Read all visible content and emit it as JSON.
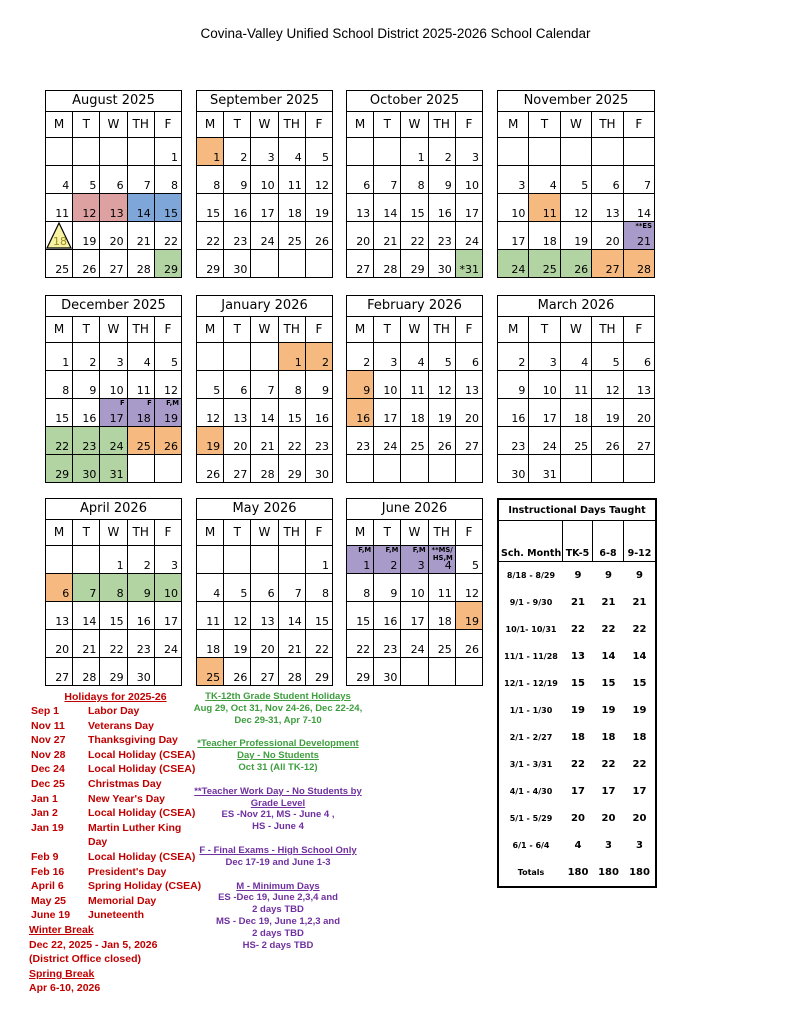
{
  "title": "Covina-Valley Unified School District  2025-2026 School Calendar",
  "day_headers": [
    "M",
    "T",
    "W",
    "TH",
    "F"
  ],
  "colors": {
    "pink": "#dda1a1",
    "blue": "#7ea6d8",
    "green": "#b2d3a2",
    "orange": "#f6b97f",
    "purple": "#a89bc9",
    "yellow": "#f7f3a3",
    "red_text": "#c00000",
    "green_text": "#3e9e3e",
    "purple_text": "#7030a0"
  },
  "months": [
    {
      "name": "August 2025",
      "weeks": [
        [
          {},
          {},
          {},
          {},
          {
            "d": "1"
          }
        ],
        [
          {
            "d": "4"
          },
          {
            "d": "5"
          },
          {
            "d": "6"
          },
          {
            "d": "7"
          },
          {
            "d": "8"
          }
        ],
        [
          {
            "d": "11"
          },
          {
            "d": "12",
            "hl": "pink"
          },
          {
            "d": "13",
            "hl": "pink"
          },
          {
            "d": "14",
            "hl": "blue"
          },
          {
            "d": "15",
            "hl": "blue"
          }
        ],
        [
          {
            "d": "18",
            "hl": "triangle"
          },
          {
            "d": "19"
          },
          {
            "d": "20"
          },
          {
            "d": "21"
          },
          {
            "d": "22"
          }
        ],
        [
          {
            "d": "25"
          },
          {
            "d": "26"
          },
          {
            "d": "27"
          },
          {
            "d": "28"
          },
          {
            "d": "29",
            "hl": "green"
          }
        ]
      ]
    },
    {
      "name": "September 2025",
      "weeks": [
        [
          {
            "d": "1",
            "hl": "orange"
          },
          {
            "d": "2"
          },
          {
            "d": "3"
          },
          {
            "d": "4"
          },
          {
            "d": "5"
          }
        ],
        [
          {
            "d": "8"
          },
          {
            "d": "9"
          },
          {
            "d": "10"
          },
          {
            "d": "11"
          },
          {
            "d": "12"
          }
        ],
        [
          {
            "d": "15"
          },
          {
            "d": "16"
          },
          {
            "d": "17"
          },
          {
            "d": "18"
          },
          {
            "d": "19"
          }
        ],
        [
          {
            "d": "22"
          },
          {
            "d": "23"
          },
          {
            "d": "24"
          },
          {
            "d": "25"
          },
          {
            "d": "26"
          }
        ],
        [
          {
            "d": "29"
          },
          {
            "d": "30"
          },
          {},
          {},
          {}
        ]
      ]
    },
    {
      "name": "October 2025",
      "weeks": [
        [
          {},
          {},
          {
            "d": "1"
          },
          {
            "d": "2"
          },
          {
            "d": "3"
          }
        ],
        [
          {
            "d": "6"
          },
          {
            "d": "7"
          },
          {
            "d": "8"
          },
          {
            "d": "9"
          },
          {
            "d": "10"
          }
        ],
        [
          {
            "d": "13"
          },
          {
            "d": "14"
          },
          {
            "d": "15"
          },
          {
            "d": "16"
          },
          {
            "d": "17"
          }
        ],
        [
          {
            "d": "20"
          },
          {
            "d": "21"
          },
          {
            "d": "22"
          },
          {
            "d": "23"
          },
          {
            "d": "24"
          }
        ],
        [
          {
            "d": "27"
          },
          {
            "d": "28"
          },
          {
            "d": "29"
          },
          {
            "d": "30"
          },
          {
            "d": "*31",
            "hl": "green"
          }
        ]
      ]
    },
    {
      "name": "November 2025",
      "weeks": [
        [
          {},
          {},
          {},
          {},
          {}
        ],
        [
          {
            "d": "3"
          },
          {
            "d": "4"
          },
          {
            "d": "5"
          },
          {
            "d": "6"
          },
          {
            "d": "7"
          }
        ],
        [
          {
            "d": "10"
          },
          {
            "d": "11",
            "hl": "orange"
          },
          {
            "d": "12"
          },
          {
            "d": "13"
          },
          {
            "d": "14"
          }
        ],
        [
          {
            "d": "17"
          },
          {
            "d": "18"
          },
          {
            "d": "19"
          },
          {
            "d": "20"
          },
          {
            "d": "21",
            "hl": "purple",
            "lbl": "**ES"
          }
        ],
        [
          {
            "d": "24",
            "hl": "green"
          },
          {
            "d": "25",
            "hl": "green"
          },
          {
            "d": "26",
            "hl": "green"
          },
          {
            "d": "27",
            "hl": "orange"
          },
          {
            "d": "28",
            "hl": "orange"
          }
        ]
      ]
    },
    {
      "name": "December 2025",
      "weeks": [
        [
          {
            "d": "1"
          },
          {
            "d": "2"
          },
          {
            "d": "3"
          },
          {
            "d": "4"
          },
          {
            "d": "5"
          }
        ],
        [
          {
            "d": "8"
          },
          {
            "d": "9"
          },
          {
            "d": "10"
          },
          {
            "d": "11"
          },
          {
            "d": "12"
          }
        ],
        [
          {
            "d": "15"
          },
          {
            "d": "16"
          },
          {
            "d": "17",
            "hl": "purple",
            "lbl": "F"
          },
          {
            "d": "18",
            "hl": "purple",
            "lbl": "F"
          },
          {
            "d": "19",
            "hl": "purple",
            "lbl": "F,M"
          }
        ],
        [
          {
            "d": "22",
            "hl": "green"
          },
          {
            "d": "23",
            "hl": "green"
          },
          {
            "d": "24",
            "hl": "green"
          },
          {
            "d": "25",
            "hl": "orange"
          },
          {
            "d": "26",
            "hl": "orange"
          }
        ],
        [
          {
            "d": "29",
            "hl": "green"
          },
          {
            "d": "30",
            "hl": "green"
          },
          {
            "d": "31",
            "hl": "green"
          },
          {},
          {}
        ]
      ]
    },
    {
      "name": "January 2026",
      "weeks": [
        [
          {},
          {},
          {},
          {
            "d": "1",
            "hl": "orange"
          },
          {
            "d": "2",
            "hl": "orange"
          }
        ],
        [
          {
            "d": "5"
          },
          {
            "d": "6"
          },
          {
            "d": "7"
          },
          {
            "d": "8"
          },
          {
            "d": "9"
          }
        ],
        [
          {
            "d": "12"
          },
          {
            "d": "13"
          },
          {
            "d": "14"
          },
          {
            "d": "15"
          },
          {
            "d": "16"
          }
        ],
        [
          {
            "d": "19",
            "hl": "orange"
          },
          {
            "d": "20"
          },
          {
            "d": "21"
          },
          {
            "d": "22"
          },
          {
            "d": "23"
          }
        ],
        [
          {
            "d": "26"
          },
          {
            "d": "27"
          },
          {
            "d": "28"
          },
          {
            "d": "29"
          },
          {
            "d": "30"
          }
        ]
      ]
    },
    {
      "name": "February 2026",
      "weeks": [
        [
          {
            "d": "2"
          },
          {
            "d": "3"
          },
          {
            "d": "4"
          },
          {
            "d": "5"
          },
          {
            "d": "6"
          }
        ],
        [
          {
            "d": "9",
            "hl": "orange"
          },
          {
            "d": "10"
          },
          {
            "d": "11"
          },
          {
            "d": "12"
          },
          {
            "d": "13"
          }
        ],
        [
          {
            "d": "16",
            "hl": "orange"
          },
          {
            "d": "17"
          },
          {
            "d": "18"
          },
          {
            "d": "19"
          },
          {
            "d": "20"
          }
        ],
        [
          {
            "d": "23"
          },
          {
            "d": "24"
          },
          {
            "d": "25"
          },
          {
            "d": "26"
          },
          {
            "d": "27"
          }
        ],
        [
          {},
          {},
          {},
          {},
          {}
        ]
      ]
    },
    {
      "name": "March 2026",
      "weeks": [
        [
          {
            "d": "2"
          },
          {
            "d": "3"
          },
          {
            "d": "4"
          },
          {
            "d": "5"
          },
          {
            "d": "6"
          }
        ],
        [
          {
            "d": "9"
          },
          {
            "d": "10"
          },
          {
            "d": "11"
          },
          {
            "d": "12"
          },
          {
            "d": "13"
          }
        ],
        [
          {
            "d": "16"
          },
          {
            "d": "17"
          },
          {
            "d": "18"
          },
          {
            "d": "19"
          },
          {
            "d": "20"
          }
        ],
        [
          {
            "d": "23"
          },
          {
            "d": "24"
          },
          {
            "d": "25"
          },
          {
            "d": "26"
          },
          {
            "d": "27"
          }
        ],
        [
          {
            "d": "30"
          },
          {
            "d": "31"
          },
          {},
          {},
          {}
        ]
      ]
    },
    {
      "name": "April 2026",
      "weeks": [
        [
          {},
          {},
          {
            "d": "1"
          },
          {
            "d": "2"
          },
          {
            "d": "3"
          }
        ],
        [
          {
            "d": "6",
            "hl": "orange"
          },
          {
            "d": "7",
            "hl": "green"
          },
          {
            "d": "8",
            "hl": "green"
          },
          {
            "d": "9",
            "hl": "green"
          },
          {
            "d": "10",
            "hl": "green"
          }
        ],
        [
          {
            "d": "13"
          },
          {
            "d": "14"
          },
          {
            "d": "15"
          },
          {
            "d": "16"
          },
          {
            "d": "17"
          }
        ],
        [
          {
            "d": "20"
          },
          {
            "d": "21"
          },
          {
            "d": "22"
          },
          {
            "d": "23"
          },
          {
            "d": "24"
          }
        ],
        [
          {
            "d": "27"
          },
          {
            "d": "28"
          },
          {
            "d": "29"
          },
          {
            "d": "30"
          },
          {}
        ]
      ]
    },
    {
      "name": "May 2026",
      "weeks": [
        [
          {},
          {},
          {},
          {},
          {
            "d": "1"
          }
        ],
        [
          {
            "d": "4"
          },
          {
            "d": "5"
          },
          {
            "d": "6"
          },
          {
            "d": "7"
          },
          {
            "d": "8"
          }
        ],
        [
          {
            "d": "11"
          },
          {
            "d": "12"
          },
          {
            "d": "13"
          },
          {
            "d": "14"
          },
          {
            "d": "15"
          }
        ],
        [
          {
            "d": "18"
          },
          {
            "d": "19"
          },
          {
            "d": "20"
          },
          {
            "d": "21"
          },
          {
            "d": "22"
          }
        ],
        [
          {
            "d": "25",
            "hl": "orange"
          },
          {
            "d": "26"
          },
          {
            "d": "27"
          },
          {
            "d": "28"
          },
          {
            "d": "29"
          }
        ]
      ]
    },
    {
      "name": "June 2026",
      "weeks": [
        [
          {
            "d": "1",
            "hl": "purple",
            "lbl": "F,M"
          },
          {
            "d": "2",
            "hl": "purple",
            "lbl": "F,M"
          },
          {
            "d": "3",
            "hl": "purple",
            "lbl": "F,M"
          },
          {
            "d": "4",
            "hl": "purple",
            "lbl": "**MS/\nHS,M"
          },
          {
            "d": "5"
          }
        ],
        [
          {
            "d": "8"
          },
          {
            "d": "9"
          },
          {
            "d": "10"
          },
          {
            "d": "11"
          },
          {
            "d": "12"
          }
        ],
        [
          {
            "d": "15"
          },
          {
            "d": "16"
          },
          {
            "d": "17"
          },
          {
            "d": "18"
          },
          {
            "d": "19",
            "hl": "orange"
          }
        ],
        [
          {
            "d": "22"
          },
          {
            "d": "23"
          },
          {
            "d": "24"
          },
          {
            "d": "25"
          },
          {
            "d": "26"
          }
        ],
        [
          {
            "d": "29"
          },
          {
            "d": "30"
          },
          {},
          {},
          {}
        ]
      ]
    }
  ],
  "instructional_table": {
    "title": "Instructional Days Taught",
    "headers": [
      "Sch. Month",
      "TK-5",
      "6-8",
      "9-12"
    ],
    "rows": [
      [
        "8/18 - 8/29",
        "9",
        "9",
        "9"
      ],
      [
        "9/1 - 9/30",
        "21",
        "21",
        "21"
      ],
      [
        "10/1- 10/31",
        "22",
        "22",
        "22"
      ],
      [
        "11/1 - 11/28",
        "13",
        "14",
        "14"
      ],
      [
        "12/1 - 12/19",
        "15",
        "15",
        "15"
      ],
      [
        "1/1 - 1/30",
        "19",
        "19",
        "19"
      ],
      [
        "2/1 - 2/27",
        "18",
        "18",
        "18"
      ],
      [
        "3/1 - 3/31",
        "22",
        "22",
        "22"
      ],
      [
        "4/1 - 4/30",
        "17",
        "17",
        "17"
      ],
      [
        "5/1 - 5/29",
        "20",
        "20",
        "20"
      ],
      [
        "6/1 - 6/4",
        "4",
        "3",
        "3"
      ],
      [
        "Totals",
        "180",
        "180",
        "180"
      ]
    ]
  },
  "holidays": {
    "title": "Holidays for 2025-26",
    "items": [
      {
        "date": "Sep 1",
        "name": "Labor Day"
      },
      {
        "date": "Nov 11",
        "name": "Veterans Day"
      },
      {
        "date": "Nov 27",
        "name": "Thanksgiving Day"
      },
      {
        "date": "Nov 28",
        "name": "Local Holiday (CSEA)"
      },
      {
        "date": "Dec 24",
        "name": "Local Holiday (CSEA)"
      },
      {
        "date": "Dec 25",
        "name": "Christmas Day"
      },
      {
        "date": "Jan 1",
        "name": "New Year's Day"
      },
      {
        "date": "Jan 2",
        "name": "Local Holiday (CSEA)"
      },
      {
        "date": "Jan 19",
        "name": "Martin Luther King Day"
      },
      {
        "date": "Feb 9",
        "name": "Local Holiday (CSEA)"
      },
      {
        "date": "Feb 16",
        "name": "President's Day"
      },
      {
        "date": "April 6",
        "name": "Spring Holiday (CSEA)"
      },
      {
        "date": "May 25",
        "name": "Memorial Day"
      },
      {
        "date": "June 19",
        "name": "Juneteenth"
      }
    ],
    "extras": [
      {
        "text": "Winter Break",
        "u": true
      },
      {
        "text": "Dec 22, 2025 - Jan 5, 2026",
        "u": false
      },
      {
        "text": "(District Office closed)",
        "u": false
      },
      {
        "text": "Spring Break",
        "u": true
      },
      {
        "text": "Apr 6-10, 2026",
        "u": false
      }
    ]
  },
  "notes": [
    {
      "color": "green",
      "lines": [
        {
          "text": "TK-12th Grade Student Holidays",
          "u": true
        },
        {
          "text": "Aug 29, Oct 31, Nov 24-26, Dec 22-24,",
          "u": false
        },
        {
          "text": "Dec 29-31, Apr 7-10",
          "u": false
        }
      ]
    },
    {
      "color": "green",
      "lines": [
        {
          "text": "*Teacher Professional Development",
          "u": true
        },
        {
          "text": "Day - No Students",
          "u": true
        },
        {
          "text": "Oct 31 (All TK-12)",
          "u": false
        }
      ]
    },
    {
      "color": "purple",
      "lines": [
        {
          "text": "**Teacher Work Day - No Students by",
          "u": true
        },
        {
          "text": "Grade Level",
          "u": true
        },
        {
          "text": "ES -Nov 21, MS - June 4 ,",
          "u": false
        },
        {
          "text": "HS - June 4",
          "u": false
        }
      ]
    },
    {
      "color": "purple",
      "lines": [
        {
          "text": "F - Final Exams - High School Only",
          "u": true
        },
        {
          "text": "Dec 17-19 and June 1-3",
          "u": false
        }
      ]
    },
    {
      "color": "purple",
      "lines": [
        {
          "text": "M - Minimum Days",
          "u": true
        },
        {
          "text": "ES -Dec 19, June 2,3,4  and",
          "u": false
        },
        {
          "text": "2 days TBD",
          "u": false
        },
        {
          "text": "MS - Dec 19, June 1,2,3 and",
          "u": false
        },
        {
          "text": "2 days TBD",
          "u": false
        },
        {
          "text": "HS- 2 days TBD",
          "u": false
        }
      ]
    }
  ]
}
